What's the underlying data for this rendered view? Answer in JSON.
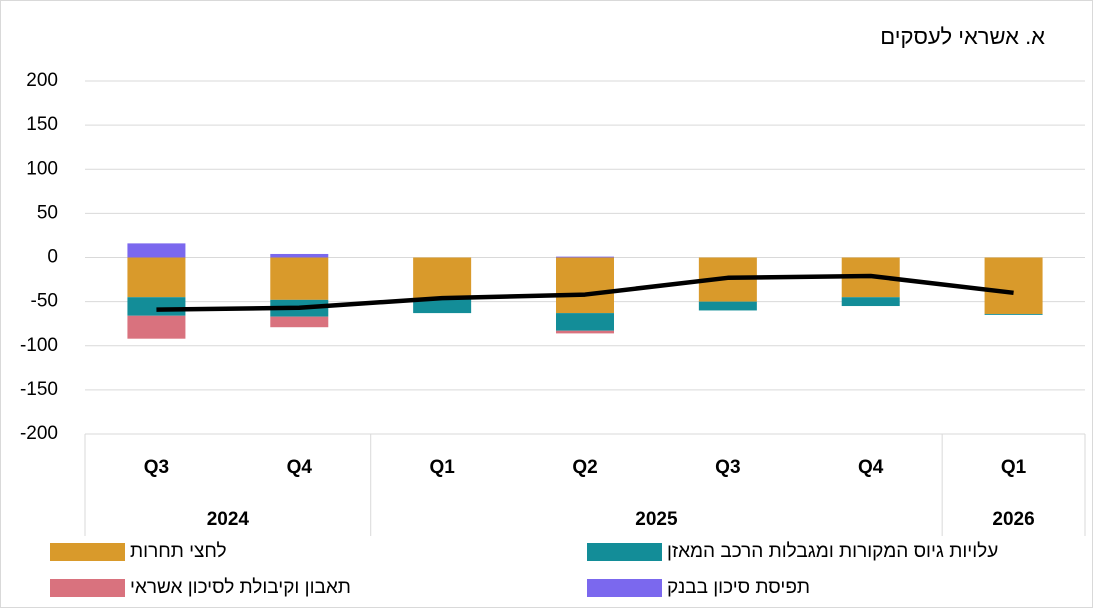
{
  "chart_data": {
    "type": "bar",
    "title": "א. אשראי לעסקים",
    "categories": [
      "Q3",
      "Q4",
      "Q1",
      "Q2",
      "Q3",
      "Q4",
      "Q1"
    ],
    "x_groups": [
      {
        "label": "2024",
        "span": 2
      },
      {
        "label": "2025",
        "span": 4
      },
      {
        "label": "2026",
        "span": 1
      }
    ],
    "stacked": true,
    "series": [
      {
        "name": "לחצי תחרות",
        "color": "#d99a2b",
        "values": [
          -45,
          -48,
          -47,
          -63,
          -50,
          -45,
          -64
        ]
      },
      {
        "name": "עלויות גיוס המקורות ומגבלות הרכב המאזן",
        "color": "#138d98",
        "values": [
          -21,
          -19,
          -16,
          -20,
          -10,
          -10,
          -1
        ]
      },
      {
        "name": "תאבון וקיבולת לסיכון אשראי",
        "color": "#d9727e",
        "values": [
          -26,
          -12,
          0,
          -3,
          0,
          0,
          0
        ]
      },
      {
        "name": "תפיסת סיכון בבנק",
        "color": "#7b68ee",
        "values": [
          16,
          4,
          0,
          1,
          0,
          0,
          0
        ]
      },
      {
        "type": "line",
        "color": "#000000",
        "values": [
          -59,
          -57,
          -46,
          -42,
          -23,
          -21,
          -40
        ]
      }
    ],
    "ylim": [
      -200,
      200
    ],
    "yticks": [
      -200,
      -150,
      -100,
      -50,
      0,
      50,
      100,
      150,
      200
    ],
    "grid": true,
    "legend": "bottom"
  }
}
